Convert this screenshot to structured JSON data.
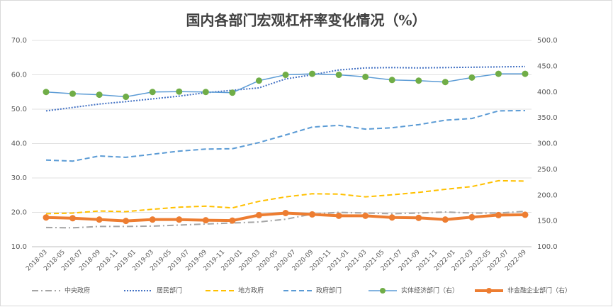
{
  "chart_data": {
    "type": "line",
    "title": "国内各部门宏观杠杆率变化情况（%）",
    "x": [
      "2018-03",
      "2018-06",
      "2018-09",
      "2018-12",
      "2019-03",
      "2019-06",
      "2019-09",
      "2019-12",
      "2020-03",
      "2020-06",
      "2020-09",
      "2020-12",
      "2021-03",
      "2021-06",
      "2021-09",
      "2021-12",
      "2022-03",
      "2022-06",
      "2022-09"
    ],
    "xticks": [
      "2018-03",
      "2018-05",
      "2018-07",
      "2018-09",
      "2018-11",
      "2019-01",
      "2019-03",
      "2019-05",
      "2019-07",
      "2019-09",
      "2019-11",
      "2020-01",
      "2020-03",
      "2020-05",
      "2020-07",
      "2020-09",
      "2020-11",
      "2021-01",
      "2021-03",
      "2021-05",
      "2021-07",
      "2021-09",
      "2021-11",
      "2022-01",
      "2022-03",
      "2022-05",
      "2022-07",
      "2022-09"
    ],
    "ylim": [
      10,
      70
    ],
    "yticks": [
      {
        "value": 10,
        "label": "10.0"
      },
      {
        "value": 20,
        "label": "20.0"
      },
      {
        "value": 30,
        "label": "30.0"
      },
      {
        "value": 40,
        "label": "40.0"
      },
      {
        "value": 50,
        "label": "50.0"
      },
      {
        "value": 60,
        "label": "60.0"
      },
      {
        "value": 70,
        "label": "70.0"
      }
    ],
    "y2lim": [
      100,
      500
    ],
    "y2ticks": [
      {
        "value": 100,
        "label": "100.0"
      },
      {
        "value": 150,
        "label": "150.0"
      },
      {
        "value": 200,
        "label": "200.0"
      },
      {
        "value": 250,
        "label": "250.0"
      },
      {
        "value": 300,
        "label": "300.0"
      },
      {
        "value": 350,
        "label": "350.0"
      },
      {
        "value": 400,
        "label": "400.0"
      },
      {
        "value": 450,
        "label": "450.0"
      },
      {
        "value": 500,
        "label": "500.0"
      }
    ],
    "grid": true,
    "legend": "bottom",
    "series": [
      {
        "name": "中央政府",
        "color": "#a5a5a5",
        "dash": "dashdot",
        "width": 2,
        "values": [
          15.6,
          15.5,
          15.9,
          15.9,
          16.0,
          16.3,
          16.6,
          16.9,
          17.2,
          18.0,
          19.5,
          20.0,
          19.8,
          19.6,
          19.8,
          20.1,
          19.8,
          19.8,
          20.3
        ]
      },
      {
        "name": "居民部门",
        "color": "#4472c4",
        "dash": "dot",
        "width": 2,
        "values": [
          49.5,
          50.5,
          51.5,
          52.2,
          53.0,
          53.8,
          54.8,
          55.5,
          56.2,
          58.8,
          60.0,
          61.4,
          62.0,
          62.1,
          62.0,
          62.1,
          62.2,
          62.3,
          62.4
        ]
      },
      {
        "name": "地方政府",
        "color": "#ffc000",
        "dash": "dash",
        "width": 2,
        "values": [
          19.6,
          19.8,
          20.4,
          20.2,
          20.9,
          21.5,
          21.8,
          21.3,
          23.2,
          24.5,
          25.4,
          25.3,
          24.5,
          25.1,
          25.8,
          26.7,
          27.5,
          29.2,
          29.1
        ]
      },
      {
        "name": "政府部门",
        "color": "#5b9bd5",
        "dash": "dash",
        "width": 2,
        "values": [
          35.2,
          34.9,
          36.4,
          36.0,
          36.9,
          37.8,
          38.4,
          38.5,
          40.3,
          42.5,
          44.8,
          45.3,
          44.2,
          44.6,
          45.5,
          46.8,
          47.3,
          49.5,
          49.6
        ]
      },
      {
        "name": "实体经济部门（右）",
        "color": "#5b9bd5",
        "marker_color": "#70ad47",
        "dash": "solid",
        "width": 1.5,
        "axis": "y2",
        "values": [
          400,
          396.7,
          394.7,
          390.7,
          400,
          400.7,
          400,
          398.7,
          422,
          433.3,
          435.3,
          433.3,
          429.3,
          423.3,
          422,
          419.3,
          428,
          435.3,
          435.3
        ]
      },
      {
        "name": "非金融企业部门（右）",
        "color": "#ed7d31",
        "marker_color": "#ed7d31",
        "dash": "solid",
        "width": 4,
        "axis": "y2",
        "values": [
          156.7,
          155.3,
          152.7,
          150,
          152.7,
          152.7,
          151.3,
          150.7,
          161.3,
          165.3,
          162.7,
          160,
          160,
          156.7,
          156,
          152.7,
          157.3,
          161.3,
          162
        ]
      }
    ]
  }
}
